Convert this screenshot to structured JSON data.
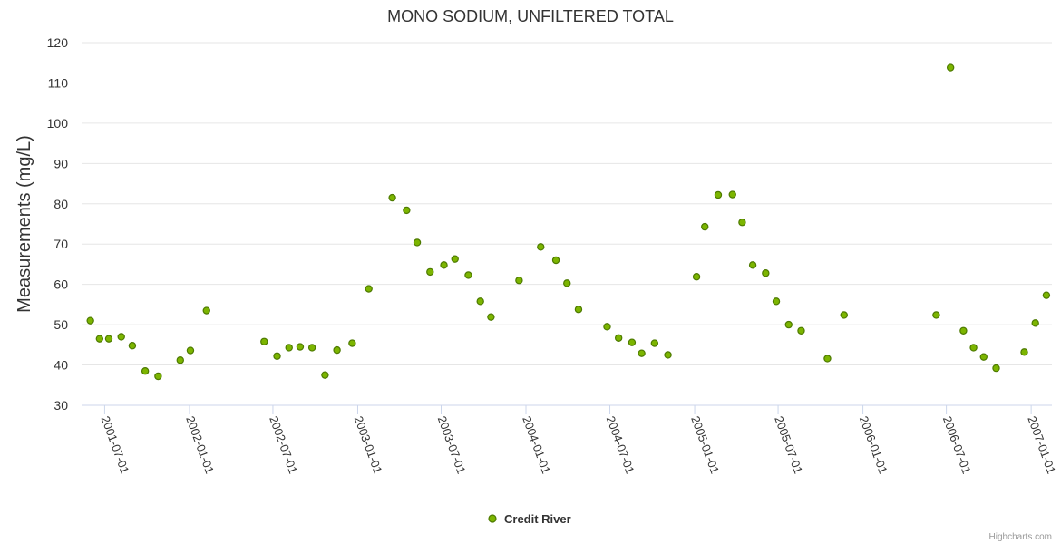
{
  "chart_data": {
    "type": "scatter",
    "title": "MONO SODIUM, UNFILTERED TOTAL",
    "ylabel": "Measurements (mg/L)",
    "xlabel": "",
    "ylim": [
      30,
      120
    ],
    "y_ticks": [
      30,
      40,
      50,
      60,
      70,
      80,
      90,
      100,
      110,
      120
    ],
    "x_ticks": [
      "2001-07-01",
      "2002-01-01",
      "2002-07-01",
      "2003-01-01",
      "2003-07-01",
      "2004-01-01",
      "2004-07-01",
      "2005-01-01",
      "2005-07-01",
      "2006-01-01",
      "2006-07-01",
      "2007-01-01"
    ],
    "grid": true,
    "legend_position": "bottom-center",
    "credits": "Highcharts.com",
    "series": [
      {
        "name": "Credit River",
        "color": "#7cb500",
        "border_color": "#4d7a00",
        "points": [
          [
            "2001-05-31",
            51.0
          ],
          [
            "2001-06-20",
            46.5
          ],
          [
            "2001-07-10",
            46.5
          ],
          [
            "2001-08-06",
            47.0
          ],
          [
            "2001-08-30",
            44.8
          ],
          [
            "2001-09-27",
            38.5
          ],
          [
            "2001-10-25",
            37.2
          ],
          [
            "2001-12-12",
            41.2
          ],
          [
            "2002-01-03",
            43.6
          ],
          [
            "2002-02-07",
            53.5
          ],
          [
            "2002-06-12",
            45.8
          ],
          [
            "2002-07-10",
            42.2
          ],
          [
            "2002-08-05",
            44.3
          ],
          [
            "2002-08-29",
            44.5
          ],
          [
            "2002-09-24",
            44.3
          ],
          [
            "2002-10-22",
            37.5
          ],
          [
            "2002-11-17",
            43.7
          ],
          [
            "2002-12-20",
            45.4
          ],
          [
            "2003-01-25",
            58.9
          ],
          [
            "2003-03-17",
            81.5
          ],
          [
            "2003-04-17",
            78.4
          ],
          [
            "2003-05-10",
            70.4
          ],
          [
            "2003-06-07",
            63.1
          ],
          [
            "2003-07-07",
            64.8
          ],
          [
            "2003-07-31",
            66.3
          ],
          [
            "2003-08-29",
            62.3
          ],
          [
            "2003-09-24",
            55.8
          ],
          [
            "2003-10-17",
            51.9
          ],
          [
            "2003-12-17",
            61.0
          ],
          [
            "2004-02-02",
            69.3
          ],
          [
            "2004-03-06",
            66.0
          ],
          [
            "2004-03-30",
            60.3
          ],
          [
            "2004-04-24",
            53.8
          ],
          [
            "2004-06-25",
            49.5
          ],
          [
            "2004-07-20",
            46.7
          ],
          [
            "2004-08-18",
            45.6
          ],
          [
            "2004-09-08",
            42.9
          ],
          [
            "2004-10-06",
            45.4
          ],
          [
            "2004-11-04",
            42.5
          ],
          [
            "2005-01-05",
            61.9
          ],
          [
            "2005-01-23",
            74.3
          ],
          [
            "2005-02-21",
            82.2
          ],
          [
            "2005-03-24",
            82.3
          ],
          [
            "2005-04-14",
            75.4
          ],
          [
            "2005-05-07",
            64.8
          ],
          [
            "2005-06-04",
            62.8
          ],
          [
            "2005-06-27",
            55.8
          ],
          [
            "2005-07-24",
            50.0
          ],
          [
            "2005-08-20",
            48.5
          ],
          [
            "2005-10-16",
            41.6
          ],
          [
            "2005-11-21",
            52.4
          ],
          [
            "2006-06-09",
            52.4
          ],
          [
            "2006-07-10",
            113.8
          ],
          [
            "2006-08-07",
            48.5
          ],
          [
            "2006-08-29",
            44.3
          ],
          [
            "2006-09-20",
            42.0
          ],
          [
            "2006-10-17",
            39.2
          ],
          [
            "2006-12-17",
            43.2
          ],
          [
            "2007-01-10",
            50.4
          ],
          [
            "2007-02-03",
            57.3
          ]
        ]
      }
    ]
  }
}
